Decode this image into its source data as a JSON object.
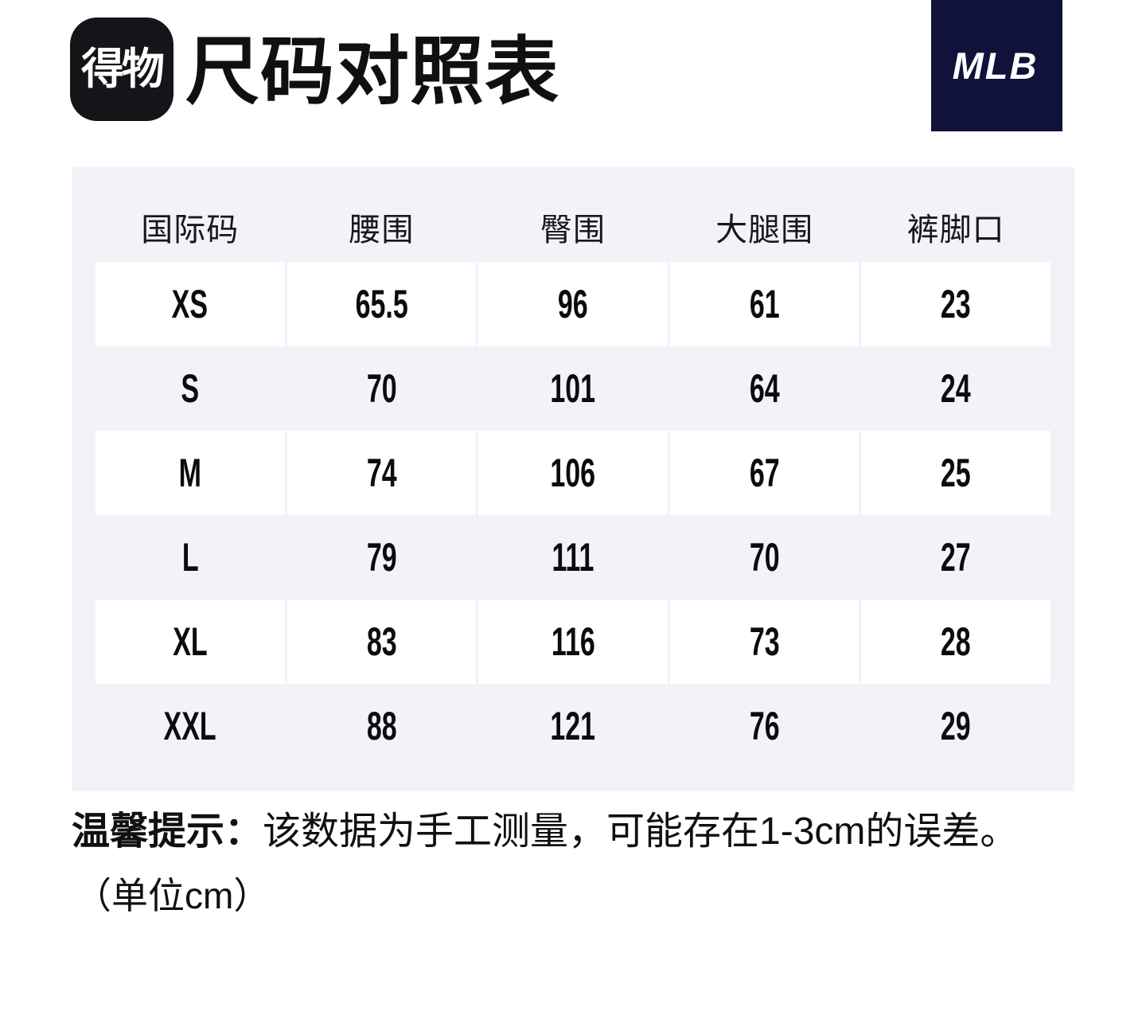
{
  "header": {
    "app_logo_text": "得物",
    "title": "尺码对照表",
    "brand_logo_text": "MLB"
  },
  "table": {
    "columns": [
      "国际码",
      "腰围",
      "臀围",
      "大腿围",
      "裤脚口"
    ],
    "rows": [
      [
        "XS",
        "65.5",
        "96",
        "61",
        "23"
      ],
      [
        "S",
        "70",
        "101",
        "64",
        "24"
      ],
      [
        "M",
        "74",
        "106",
        "67",
        "25"
      ],
      [
        "L",
        "79",
        "111",
        "70",
        "27"
      ],
      [
        "XL",
        "83",
        "116",
        "73",
        "28"
      ],
      [
        "XXL",
        "88",
        "121",
        "76",
        "29"
      ]
    ]
  },
  "footer": {
    "notice_label": "温馨提示：",
    "notice_text": "该数据为手工测量，可能存在1-3cm的误差。",
    "unit_note": "（单位cm）"
  },
  "colors": {
    "page_background": "#ffffff",
    "table_background": "#f2f3f8",
    "cell_background": "#ffffff",
    "app_logo_background": "#141419",
    "brand_logo_background": "#10123a",
    "text": "#101013"
  },
  "chart_data": {
    "type": "table",
    "title": "尺码对照表",
    "columns": [
      "国际码",
      "腰围",
      "臀围",
      "大腿围",
      "裤脚口"
    ],
    "rows": [
      [
        "XS",
        "65.5",
        "96",
        "61",
        "23"
      ],
      [
        "S",
        "70",
        "101",
        "64",
        "24"
      ],
      [
        "M",
        "74",
        "106",
        "67",
        "25"
      ],
      [
        "L",
        "79",
        "111",
        "70",
        "27"
      ],
      [
        "XL",
        "83",
        "116",
        "73",
        "28"
      ],
      [
        "XXL",
        "88",
        "121",
        "76",
        "29"
      ]
    ],
    "unit": "cm",
    "note": "该数据为手工测量，可能存在1-3cm的误差。"
  }
}
